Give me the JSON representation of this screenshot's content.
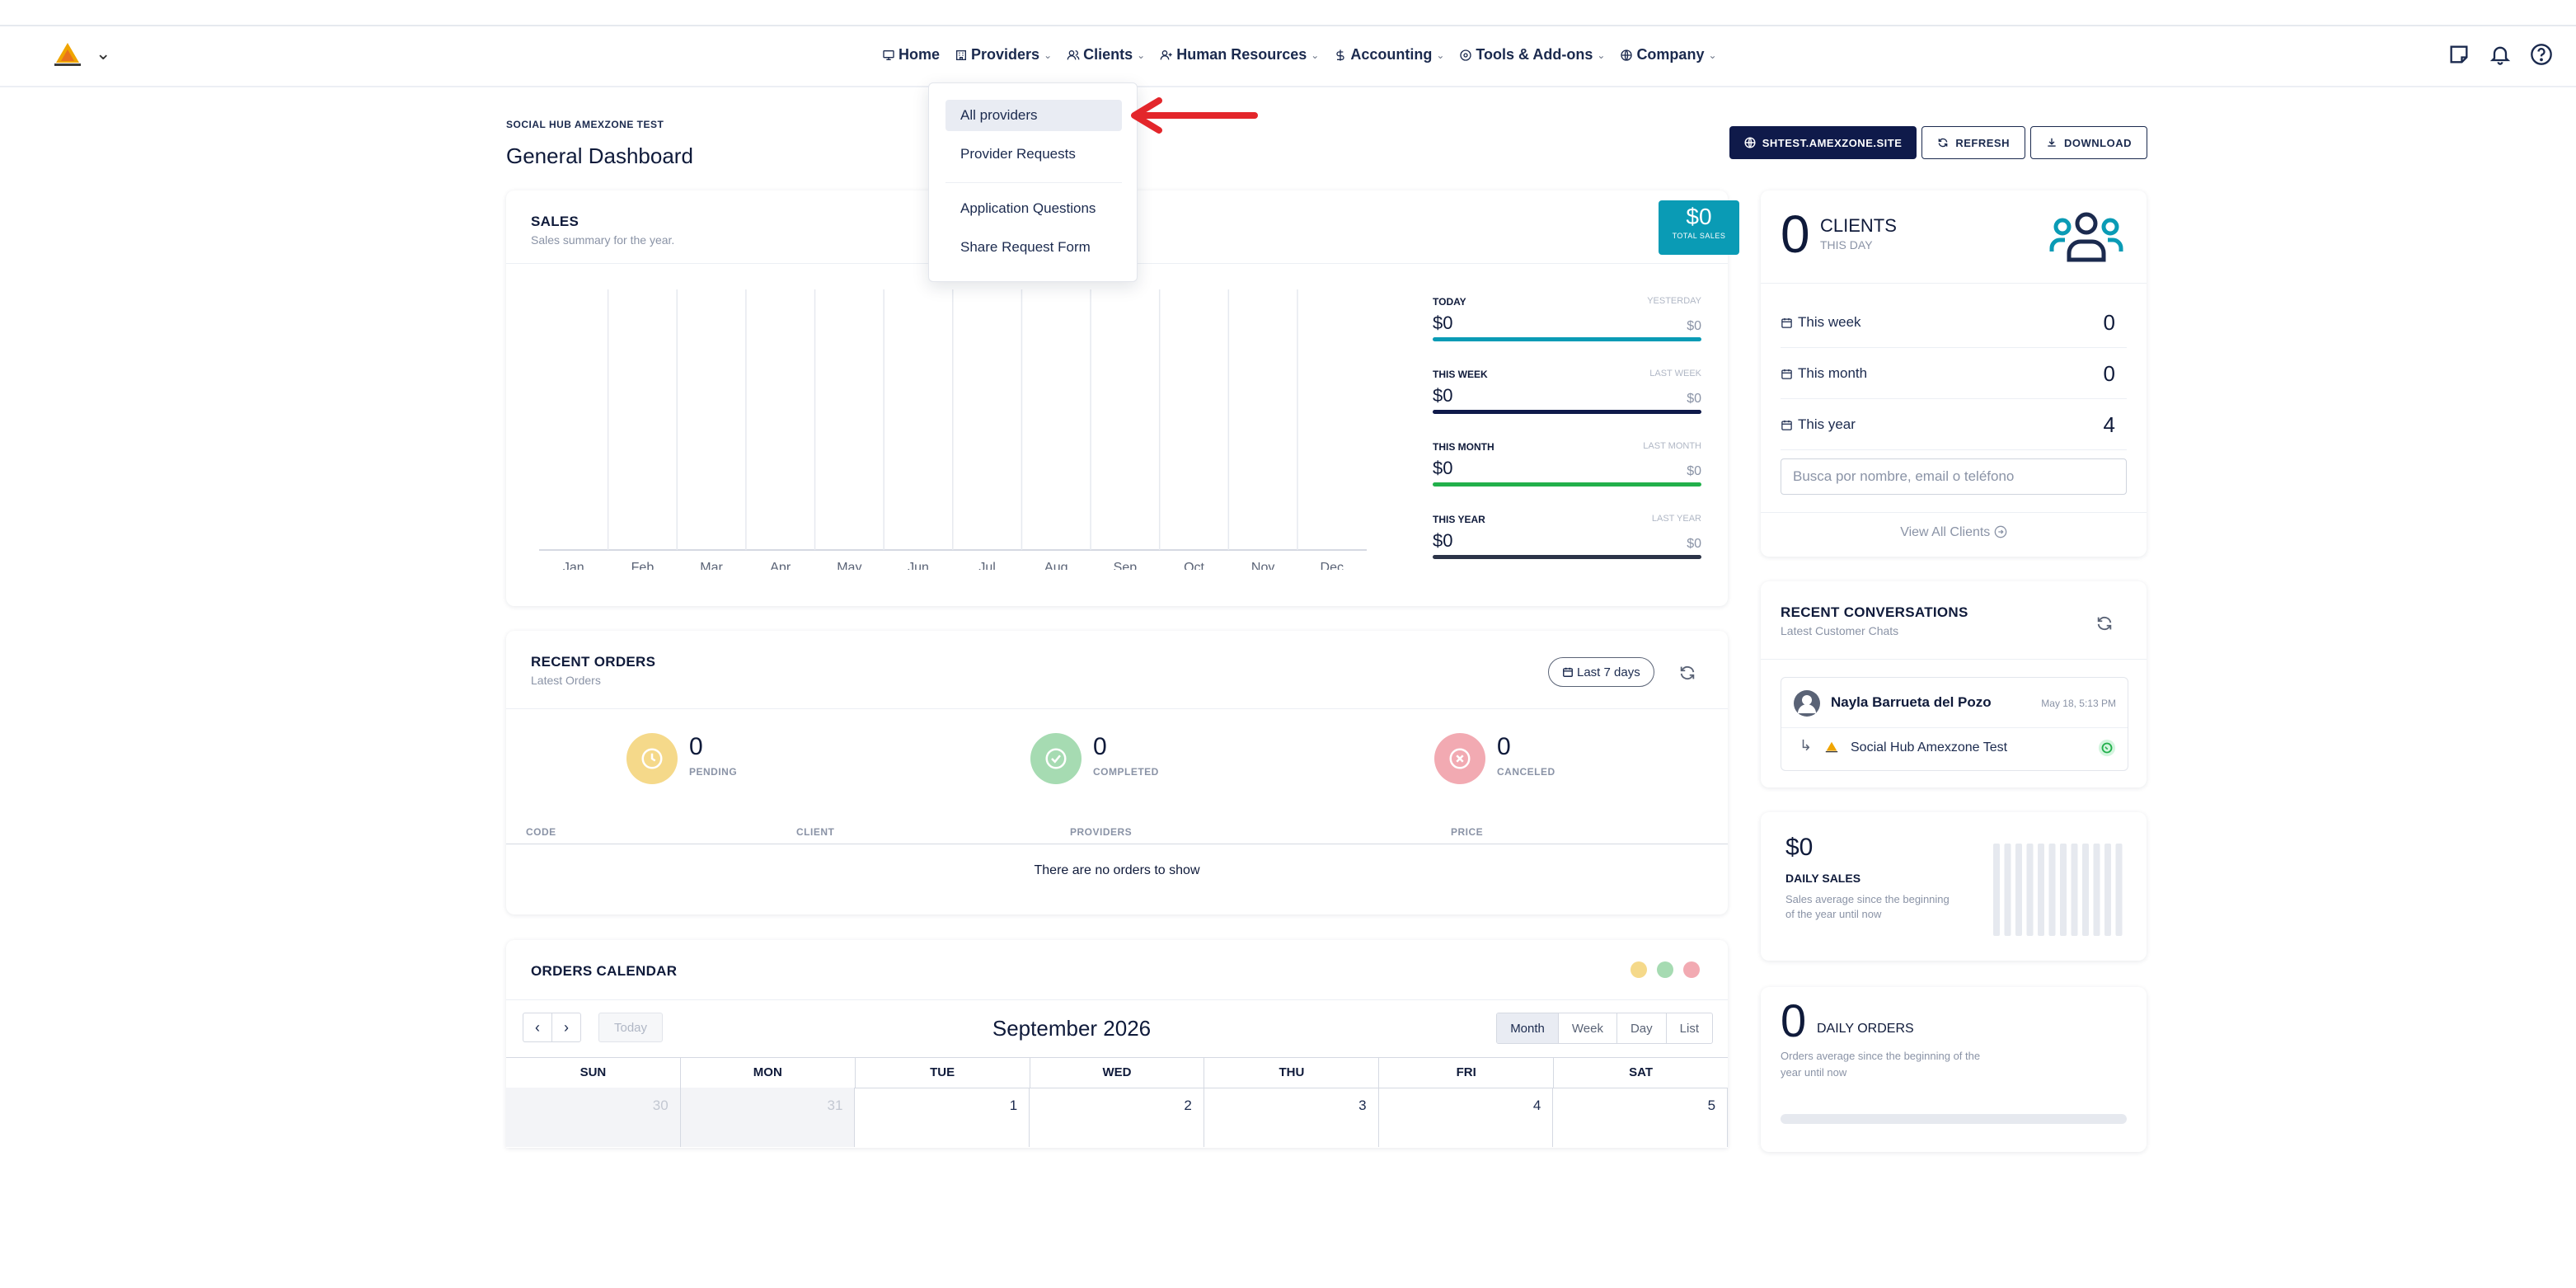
{
  "nav": {
    "items": [
      {
        "label": "Home",
        "icon": "monitor-icon",
        "has_caret": false
      },
      {
        "label": "Providers",
        "icon": "building-icon",
        "has_caret": true
      },
      {
        "label": "Clients",
        "icon": "users-icon",
        "has_caret": true
      },
      {
        "label": "Human Resources",
        "icon": "user-plus-icon",
        "has_caret": true
      },
      {
        "label": "Accounting",
        "icon": "dollar-icon",
        "has_caret": true
      },
      {
        "label": "Tools & Add-ons",
        "icon": "tools-icon",
        "has_caret": true
      },
      {
        "label": "Company",
        "icon": "globe-icon",
        "has_caret": true
      }
    ]
  },
  "providers_menu": {
    "items": [
      "All providers",
      "Provider Requests",
      "Application Questions",
      "Share Request Form"
    ],
    "active": "All providers"
  },
  "header": {
    "crumb": "SOCIAL HUB AMEXZONE TEST",
    "title": "General Dashboard",
    "site_button": "SHTEST.AMEXZONE.SITE",
    "refresh_button": "REFRESH",
    "download_button": "DOWNLOAD"
  },
  "sales": {
    "title": "SALES",
    "subtitle": "Sales summary for the year.",
    "badge_value": "$0",
    "badge_label": "TOTAL SALES",
    "stats": [
      {
        "label": "TODAY",
        "prev_label": "YESTERDAY",
        "value": "$0",
        "prev_value": "$0",
        "color": "#0a9bb5"
      },
      {
        "label": "THIS WEEK",
        "prev_label": "LAST WEEK",
        "value": "$0",
        "prev_value": "$0",
        "color": "#0f1a4a"
      },
      {
        "label": "THIS MONTH",
        "prev_label": "LAST MONTH",
        "value": "$0",
        "prev_value": "$0",
        "color": "#22b04b"
      },
      {
        "label": "THIS YEAR",
        "prev_label": "LAST YEAR",
        "value": "$0",
        "prev_value": "$0",
        "color": "#2c3448"
      }
    ]
  },
  "chart_data": {
    "type": "bar",
    "categories": [
      "Jan",
      "Feb",
      "Mar",
      "Apr",
      "May",
      "Jun",
      "Jul",
      "Aug",
      "Sep",
      "Oct",
      "Nov",
      "Dec"
    ],
    "values": [
      0,
      0,
      0,
      0,
      0,
      0,
      0,
      0,
      0,
      0,
      0,
      0
    ]
  },
  "orders": {
    "title": "RECENT ORDERS",
    "subtitle": "Latest Orders",
    "period": "Last 7 days",
    "pending": {
      "count": "0",
      "label": "PENDING",
      "color": "#f5d98a"
    },
    "completed": {
      "count": "0",
      "label": "COMPLETED",
      "color": "#a6dbb2"
    },
    "canceled": {
      "count": "0",
      "label": "CANCELED",
      "color": "#f2aab2"
    },
    "columns": [
      "CODE",
      "CLIENT",
      "PROVIDERS",
      "PRICE"
    ],
    "empty": "There are no orders to show"
  },
  "calendar": {
    "title": "ORDERS CALENDAR",
    "month": "September 2026",
    "today_label": "Today",
    "views": [
      "Month",
      "Week",
      "Day",
      "List"
    ],
    "active_view": "Month",
    "dow": [
      "SUN",
      "MON",
      "TUE",
      "WED",
      "THU",
      "FRI",
      "SAT"
    ],
    "first_row": [
      "30",
      "31",
      "1",
      "2",
      "3",
      "4",
      "5"
    ],
    "dot_colors": [
      "#f5d98a",
      "#a6dbb2",
      "#f2aab2"
    ]
  },
  "clients": {
    "count": "0",
    "label": "CLIENTS",
    "sublabel": "THIS DAY",
    "rows": [
      {
        "label": "This week",
        "value": "0"
      },
      {
        "label": "This month",
        "value": "0"
      },
      {
        "label": "This year",
        "value": "4"
      }
    ],
    "search_placeholder": "Busca por nombre, email o teléfono",
    "view_all": "View All Clients"
  },
  "conversations": {
    "title": "RECENT CONVERSATIONS",
    "subtitle": "Latest Customer Chats",
    "chat": {
      "name": "Nayla Barrueta del Pozo",
      "time": "May 18, 5:13 PM",
      "channel": "Social Hub Amexzone Test"
    }
  },
  "daily_sales": {
    "value": "$0",
    "label": "DAILY SALES",
    "desc_line1": "Sales average since the beginning",
    "desc_line2": "of the year until now"
  },
  "daily_orders": {
    "value": "0",
    "label": "DAILY ORDERS",
    "desc_line1": "Orders average since the beginning of the",
    "desc_line2": "year until now"
  }
}
